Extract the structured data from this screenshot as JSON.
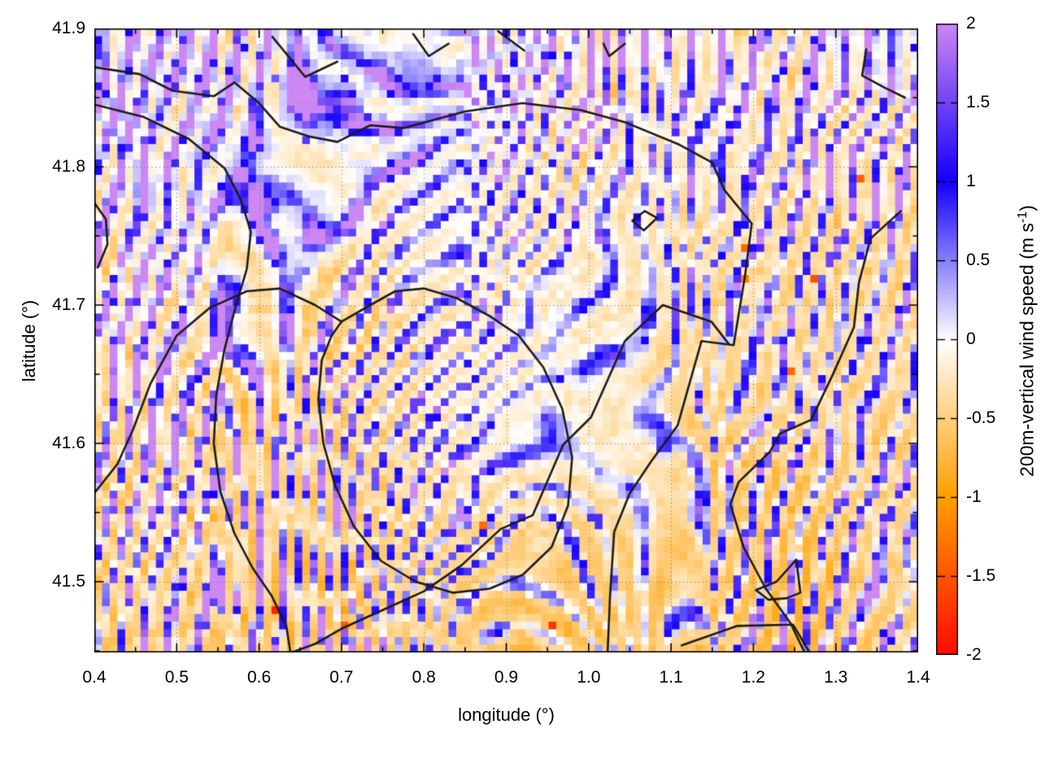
{
  "chart_data": {
    "type": "heatmap",
    "xlabel": "longitude (°)",
    "ylabel": "latitude (°)",
    "xlim": [
      0.4,
      1.4
    ],
    "ylim": [
      41.449,
      41.9
    ],
    "grid": {
      "major": true,
      "style": "dotted"
    },
    "xticks": {
      "values": [
        0.4,
        0.5,
        0.6,
        0.7,
        0.8,
        0.9,
        1.0,
        1.1,
        1.2,
        1.3,
        1.4
      ],
      "labels": [
        "0.4",
        "0.5",
        "0.6",
        "0.7",
        "0.8",
        "0.9",
        "1.0",
        "1.1",
        "1.2",
        "1.3",
        "1.4"
      ],
      "minor": [
        0.45,
        0.55,
        0.65,
        0.75,
        0.85,
        0.95,
        1.05,
        1.15,
        1.25,
        1.35
      ]
    },
    "yticks": {
      "values": [
        41.9,
        41.8,
        41.7,
        41.6,
        41.5
      ],
      "labels": [
        "41.9",
        "41.8",
        "41.7",
        "41.6",
        "41.5"
      ],
      "minor": [
        41.85,
        41.75,
        41.65,
        41.55,
        41.45
      ]
    },
    "colorbar": {
      "label_main": "200m-vertical wind speed (m s",
      "label_sup": "-1",
      "label_close": ")",
      "min": -2,
      "max": 2,
      "tick_values": [
        2,
        1.5,
        1,
        0.5,
        0,
        -0.5,
        -1,
        -1.5,
        -2
      ],
      "tick_labels": [
        "2",
        "1.5",
        "1",
        "0.5",
        "0",
        "-0.5",
        "-1",
        "-1.5",
        "-2"
      ],
      "palette": [
        {
          "v": -2,
          "color": "#ff0a00"
        },
        {
          "v": -1,
          "color": "#ffa000"
        },
        {
          "v": 0,
          "color": "#ffffff"
        },
        {
          "v": 1,
          "color": "#1400fb"
        },
        {
          "v": 2,
          "color": "#cc88f2"
        }
      ]
    },
    "field_mean_grid": {
      "description": "coarse mean of the plotted wind-speed field (m/s), rows north to south",
      "lon_start": 0.4,
      "lon_step": 0.05,
      "lat_start": 41.9,
      "lat_step": -0.05,
      "values": [
        [
          0.3,
          0.2,
          0.3,
          0.2,
          0.1,
          0.3,
          0.4,
          0.3,
          0.5,
          0.4,
          0.3,
          0.2,
          0.1,
          0.2,
          0.1,
          0.0,
          -0.1,
          0.1,
          0.2,
          0.1,
          0.2
        ],
        [
          0.2,
          0.3,
          0.2,
          0.3,
          0.2,
          0.2,
          0.3,
          0.2,
          0.3,
          0.2,
          0.1,
          0.1,
          0.0,
          -0.1,
          0.0,
          0.1,
          0.0,
          -0.1,
          0.0,
          0.1,
          0.0
        ],
        [
          0.1,
          0.2,
          0.1,
          0.2,
          0.1,
          0.1,
          0.2,
          0.1,
          0.1,
          0.0,
          0.0,
          -0.1,
          -0.1,
          0.0,
          -0.1,
          -0.1,
          -0.2,
          -0.1,
          -0.1,
          0.0,
          -0.1
        ],
        [
          0.0,
          0.1,
          0.2,
          0.1,
          0.0,
          0.1,
          0.0,
          -0.1,
          0.0,
          0.0,
          -0.1,
          -0.1,
          0.0,
          -0.1,
          -0.2,
          -0.2,
          -0.1,
          -0.2,
          -0.3,
          -0.2,
          -0.2
        ],
        [
          0.0,
          0.1,
          0.0,
          0.1,
          0.0,
          -0.1,
          -0.2,
          -0.2,
          -0.1,
          -0.1,
          -0.1,
          0.0,
          -0.1,
          -0.1,
          -0.2,
          -0.3,
          -0.2,
          -0.3,
          -0.3,
          -0.2,
          -0.3
        ],
        [
          -0.1,
          0.0,
          0.0,
          -0.1,
          -0.1,
          -0.2,
          -0.2,
          -0.2,
          -0.1,
          -0.1,
          -0.05,
          -0.05,
          -0.1,
          -0.2,
          -0.3,
          -0.3,
          -0.3,
          -0.2,
          -0.3,
          -0.3,
          -0.2
        ],
        [
          -0.2,
          -0.1,
          -0.1,
          -0.2,
          -0.2,
          -0.2,
          -0.3,
          -0.2,
          -0.1,
          -0.05,
          -0.05,
          -0.1,
          -0.1,
          -0.2,
          -0.3,
          -0.4,
          -0.3,
          -0.3,
          -0.2,
          -0.3,
          -0.3
        ],
        [
          -0.2,
          -0.2,
          -0.1,
          -0.2,
          -0.3,
          -0.3,
          -0.3,
          -0.3,
          -0.2,
          -0.2,
          -0.2,
          -0.2,
          -0.3,
          -0.3,
          -0.4,
          -0.4,
          -0.3,
          -0.3,
          -0.3,
          -0.2,
          -0.3
        ],
        [
          -0.3,
          -0.2,
          -0.2,
          -0.3,
          -0.3,
          -0.3,
          -0.35,
          -0.3,
          -0.3,
          -0.35,
          -0.4,
          -0.45,
          -0.5,
          -0.45,
          -0.4,
          -0.35,
          -0.3,
          -0.4,
          -0.3,
          -0.3,
          -0.3
        ],
        [
          -0.3,
          -0.3,
          -0.25,
          -0.3,
          -0.3,
          -0.35,
          -0.35,
          -0.3,
          -0.35,
          -0.4,
          -0.5,
          -0.5,
          -0.45,
          -0.5,
          -0.45,
          -0.4,
          -0.45,
          -0.5,
          -0.4,
          -0.35,
          -0.3
        ]
      ]
    },
    "contour_lines": [
      [
        [
          0.4,
          41.872
        ],
        [
          0.455,
          41.867
        ],
        [
          0.495,
          41.855
        ],
        [
          0.545,
          41.851
        ],
        [
          0.57,
          41.861
        ],
        [
          0.6,
          41.846
        ],
        [
          0.625,
          41.829
        ],
        [
          0.66,
          41.822
        ],
        [
          0.695,
          41.818
        ],
        [
          0.735,
          41.83
        ],
        [
          0.775,
          41.828
        ],
        [
          0.85,
          41.84
        ],
        [
          0.92,
          41.846
        ],
        [
          0.99,
          41.841
        ],
        [
          1.045,
          41.832
        ],
        [
          1.11,
          41.816
        ],
        [
          1.15,
          41.803
        ],
        [
          1.165,
          41.783
        ],
        [
          1.198,
          41.759
        ],
        [
          1.19,
          41.722
        ],
        [
          1.176,
          41.671
        ],
        [
          1.137,
          41.674
        ],
        [
          1.108,
          41.613
        ],
        [
          1.076,
          41.587
        ],
        [
          1.05,
          41.564
        ],
        [
          1.031,
          41.536
        ],
        [
          1.026,
          41.49
        ],
        [
          1.023,
          41.449
        ]
      ],
      [
        [
          0.4,
          41.845
        ],
        [
          0.46,
          41.836
        ],
        [
          0.515,
          41.82
        ],
        [
          0.558,
          41.799
        ],
        [
          0.578,
          41.776
        ],
        [
          0.59,
          41.753
        ],
        [
          0.585,
          41.726
        ],
        [
          0.572,
          41.7
        ],
        [
          0.558,
          41.668
        ],
        [
          0.548,
          41.635
        ],
        [
          0.545,
          41.6
        ],
        [
          0.553,
          41.565
        ],
        [
          0.57,
          41.535
        ],
        [
          0.592,
          41.51
        ],
        [
          0.615,
          41.49
        ],
        [
          0.633,
          41.468
        ],
        [
          0.638,
          41.449
        ]
      ],
      [
        [
          0.4,
          41.564
        ],
        [
          0.428,
          41.585
        ],
        [
          0.447,
          41.61
        ],
        [
          0.468,
          41.643
        ],
        [
          0.5,
          41.678
        ],
        [
          0.54,
          41.698
        ],
        [
          0.585,
          41.71
        ],
        [
          0.625,
          41.712
        ],
        [
          0.668,
          41.7
        ],
        [
          0.7,
          41.688
        ],
        [
          0.735,
          41.7
        ],
        [
          0.765,
          41.71
        ],
        [
          0.8,
          41.712
        ],
        [
          0.84,
          41.705
        ],
        [
          0.88,
          41.692
        ],
        [
          0.915,
          41.678
        ],
        [
          0.945,
          41.655
        ],
        [
          0.968,
          41.625
        ],
        [
          0.98,
          41.59
        ],
        [
          0.975,
          41.555
        ],
        [
          0.955,
          41.525
        ],
        [
          0.92,
          41.505
        ],
        [
          0.88,
          41.495
        ],
        [
          0.835,
          41.492
        ],
        [
          0.79,
          41.5
        ],
        [
          0.748,
          41.515
        ],
        [
          0.715,
          41.54
        ],
        [
          0.692,
          41.57
        ],
        [
          0.678,
          41.6
        ],
        [
          0.672,
          41.632
        ],
        [
          0.676,
          41.66
        ],
        [
          0.688,
          41.678
        ],
        [
          0.7,
          41.688
        ]
      ],
      [
        [
          0.64,
          41.449
        ],
        [
          0.668,
          41.455
        ],
        [
          0.7,
          41.466
        ],
        [
          0.748,
          41.479
        ],
        [
          0.8,
          41.493
        ],
        [
          0.846,
          41.512
        ],
        [
          0.893,
          41.538
        ],
        [
          0.932,
          41.548
        ],
        [
          0.969,
          41.599
        ],
        [
          1.003,
          41.619
        ],
        [
          1.044,
          41.674
        ],
        [
          1.09,
          41.7
        ],
        [
          1.149,
          41.688
        ],
        [
          1.17,
          41.672
        ]
      ],
      [
        [
          1.379,
          41.768
        ],
        [
          1.342,
          41.748
        ],
        [
          1.328,
          41.716
        ],
        [
          1.322,
          41.684
        ],
        [
          1.295,
          41.648
        ],
        [
          1.27,
          41.617
        ],
        [
          1.232,
          41.607
        ],
        [
          1.22,
          41.594
        ],
        [
          1.182,
          41.572
        ],
        [
          1.172,
          41.556
        ],
        [
          1.188,
          41.525
        ],
        [
          1.215,
          41.495
        ],
        [
          1.245,
          41.47
        ],
        [
          1.262,
          41.449
        ]
      ],
      [
        [
          1.337,
          41.885
        ],
        [
          1.332,
          41.866
        ],
        [
          1.36,
          41.857
        ],
        [
          1.384,
          41.85
        ]
      ],
      [
        [
          0.616,
          41.894
        ],
        [
          0.656,
          41.865
        ],
        [
          0.695,
          41.876
        ]
      ],
      [
        [
          0.787,
          41.896
        ],
        [
          0.806,
          41.88
        ],
        [
          0.83,
          41.889
        ]
      ],
      [
        [
          1.018,
          41.889
        ],
        [
          1.025,
          41.88
        ],
        [
          1.044,
          41.889
        ]
      ],
      [
        [
          0.89,
          41.898
        ],
        [
          0.922,
          41.884
        ]
      ],
      [
        [
          1.053,
          41.761
        ],
        [
          1.068,
          41.768
        ],
        [
          1.083,
          41.763
        ],
        [
          1.067,
          41.754
        ],
        [
          1.053,
          41.761
        ]
      ],
      [
        [
          1.203,
          41.494
        ],
        [
          1.228,
          41.5
        ],
        [
          1.252,
          41.516
        ],
        [
          1.257,
          41.492
        ],
        [
          1.24,
          41.488
        ],
        [
          1.218,
          41.487
        ],
        [
          1.203,
          41.494
        ]
      ],
      [
        [
          1.113,
          41.454
        ],
        [
          1.18,
          41.468
        ],
        [
          1.248,
          41.469
        ],
        [
          1.268,
          41.449
        ]
      ],
      [
        [
          0.4,
          41.774
        ],
        [
          0.414,
          41.762
        ],
        [
          0.416,
          41.744
        ],
        [
          0.404,
          41.727
        ]
      ]
    ]
  }
}
